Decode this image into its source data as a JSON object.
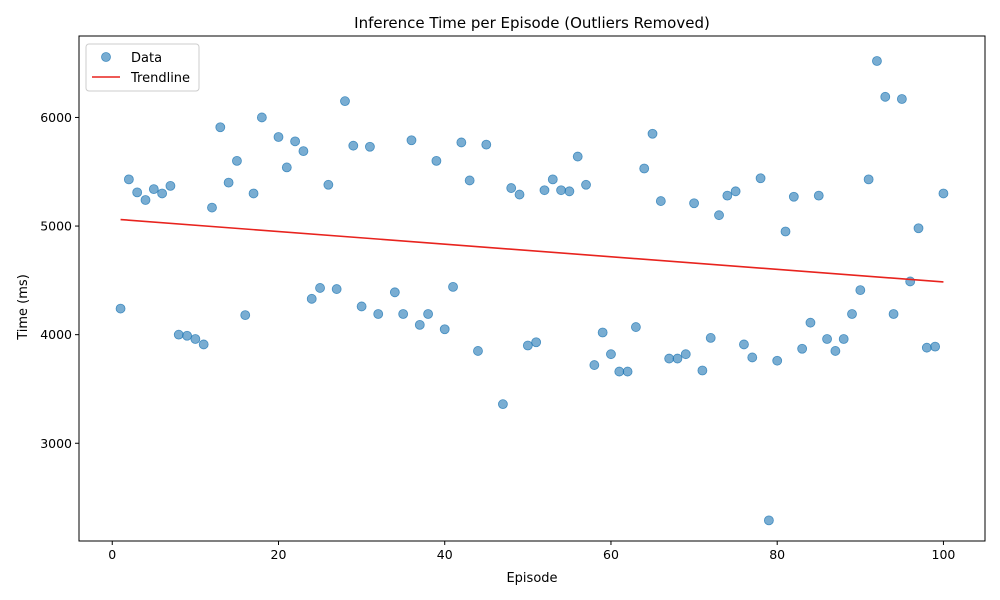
{
  "chart_data": {
    "type": "scatter",
    "title": "Inference Time per Episode (Outliers Removed)",
    "xlabel": "Episode",
    "ylabel": "Time (ms)",
    "xlim": [
      -4,
      105
    ],
    "ylim": [
      2100,
      6750
    ],
    "xticks": [
      0,
      20,
      40,
      60,
      80,
      100
    ],
    "yticks": [
      3000,
      4000,
      5000,
      6000
    ],
    "grid": false,
    "legend_position": "top-left",
    "colors": {
      "data": "#1f77b4",
      "trendline": "#e8231e"
    },
    "series": [
      {
        "name": "Data",
        "kind": "scatter",
        "x": [
          1,
          2,
          3,
          4,
          5,
          6,
          7,
          8,
          9,
          10,
          11,
          12,
          13,
          14,
          15,
          16,
          17,
          18,
          20,
          21,
          22,
          23,
          24,
          25,
          26,
          27,
          28,
          29,
          30,
          31,
          32,
          34,
          35,
          36,
          37,
          38,
          39,
          40,
          41,
          42,
          43,
          44,
          45,
          47,
          48,
          49,
          50,
          51,
          52,
          53,
          54,
          55,
          56,
          57,
          58,
          59,
          60,
          61,
          62,
          63,
          64,
          65,
          66,
          67,
          68,
          69,
          70,
          71,
          72,
          73,
          74,
          75,
          76,
          77,
          78,
          79,
          80,
          81,
          82,
          83,
          84,
          85,
          86,
          87,
          88,
          89,
          90,
          91,
          92,
          93,
          94,
          95,
          96,
          97,
          98,
          99,
          100
        ],
        "y": [
          4240,
          5430,
          5310,
          5240,
          5340,
          5300,
          5370,
          4000,
          3990,
          3960,
          3910,
          5170,
          5910,
          5400,
          5600,
          4180,
          5300,
          6000,
          5820,
          5540,
          5780,
          5690,
          4330,
          4430,
          5380,
          4420,
          6150,
          5740,
          4260,
          5730,
          4190,
          4390,
          4190,
          5790,
          4090,
          4190,
          5600,
          4050,
          4440,
          5770,
          5420,
          3850,
          5750,
          3360,
          5350,
          5290,
          3900,
          3930,
          5330,
          5430,
          5330,
          5320,
          5640,
          5380,
          3720,
          4020,
          3820,
          3660,
          3660,
          4070,
          5530,
          5850,
          5230,
          3780,
          3780,
          3820,
          5210,
          3670,
          3970,
          5100,
          5280,
          5320,
          3910,
          3790,
          5440,
          2290,
          3760,
          4950,
          5270,
          3870,
          4110,
          5280,
          3960,
          3850,
          3960,
          4190,
          4410,
          5430,
          6520,
          6190,
          4190,
          6170,
          4490,
          4980,
          3880,
          3890,
          5300
        ]
      },
      {
        "name": "Trendline",
        "kind": "line",
        "x": [
          1,
          100
        ],
        "y": [
          5060,
          4485
        ]
      }
    ]
  }
}
